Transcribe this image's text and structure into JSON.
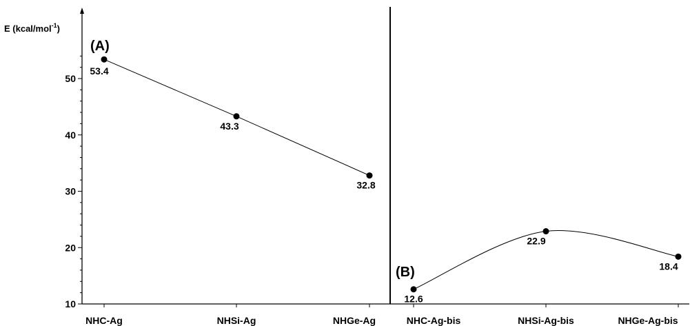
{
  "chart_data": {
    "type": "line",
    "ylabel_main": "E (kcal/mol",
    "ylabel_sup": "-1",
    "ylabel_close": ")",
    "ylim": [
      10,
      56
    ],
    "yticks": [
      10,
      20,
      30,
      40,
      50
    ],
    "categories": [
      "NHC-Ag",
      "NHSi-Ag",
      "NHGe-Ag",
      "NHC-Ag-bis",
      "NHSi-Ag-bis",
      "NHGe-Ag-bis"
    ],
    "panels": [
      {
        "label": "(A)",
        "curve": "straight",
        "x": [
          "NHC-Ag",
          "NHSi-Ag",
          "NHGe-Ag"
        ],
        "values": [
          53.4,
          43.3,
          32.8
        ],
        "value_labels": [
          "53.4",
          "43.3",
          "32.8"
        ]
      },
      {
        "label": "(B)",
        "curve": "smooth",
        "x": [
          "NHC-Ag-bis",
          "NHSi-Ag-bis",
          "NHGe-Ag-bis"
        ],
        "values": [
          12.6,
          22.9,
          18.4
        ],
        "value_labels": [
          "12.6",
          "22.9",
          "18.4"
        ]
      }
    ],
    "grid": false,
    "colors": {
      "line": "#000000",
      "marker": "#000000"
    }
  }
}
